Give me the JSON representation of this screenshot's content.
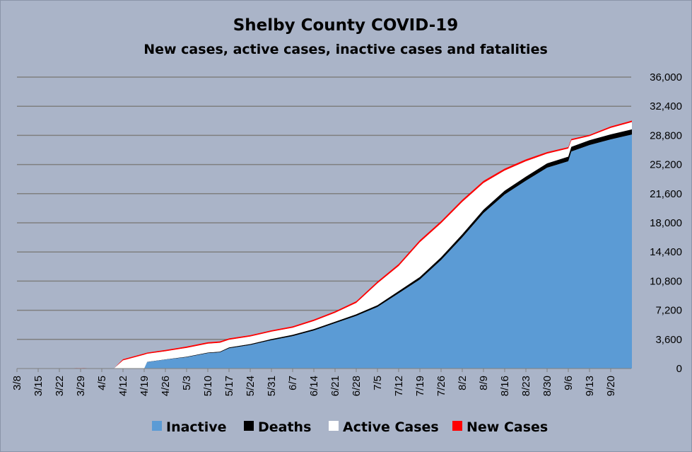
{
  "chart_data": {
    "type": "area",
    "title": "Shelby County COVID-19",
    "subtitle": "New cases, active cases, inactive cases and fatalities",
    "xlabel": "",
    "ylabel": "",
    "x_tick_labels": [
      "3/8",
      "3/15",
      "3/22",
      "3/29",
      "4/5",
      "4/12",
      "4/19",
      "4/26",
      "5/3",
      "5/10",
      "5/17",
      "5/24",
      "5/31",
      "6/7",
      "6/14",
      "6/21",
      "6/28",
      "7/5",
      "7/12",
      "7/19",
      "7/26",
      "8/2",
      "8/9",
      "8/16",
      "8/23",
      "8/30",
      "9/6",
      "9/13",
      "9/20"
    ],
    "y_tick_labels": [
      "0",
      "3,600",
      "7,200",
      "10,800",
      "14,400",
      "18,000",
      "21,600",
      "25,200",
      "28,800",
      "32,400",
      "36,000"
    ],
    "ylim": [
      0,
      36000
    ],
    "y_axis_side": "right",
    "grid": true,
    "legend_position": "bottom",
    "colors": {
      "Inactive": "#5b9bd5",
      "Deaths": "#000000",
      "Active Cases": "#ffffff",
      "New Cases": "#ff0000",
      "background": "#aab4c8",
      "gridline": "#7f7f7f"
    },
    "x": [
      "3/8",
      "3/15",
      "3/22",
      "3/29",
      "4/5",
      "4/9",
      "4/12",
      "4/19",
      "4/20",
      "4/26",
      "5/3",
      "5/10",
      "5/14",
      "5/17",
      "5/24",
      "5/31",
      "6/7",
      "6/14",
      "6/21",
      "6/28",
      "7/5",
      "7/12",
      "7/19",
      "7/26",
      "8/2",
      "8/9",
      "8/16",
      "8/23",
      "8/30",
      "9/6",
      "9/7",
      "9/13",
      "9/20",
      "9/27"
    ],
    "series": [
      {
        "name": "Inactive",
        "values": [
          0,
          0,
          0,
          0,
          0,
          0,
          0,
          0,
          800,
          1100,
          1400,
          1900,
          2000,
          2500,
          2900,
          3500,
          4000,
          4700,
          5600,
          6500,
          7600,
          9300,
          11000,
          13400,
          16200,
          19200,
          21500,
          23200,
          24800,
          25600,
          26800,
          27600,
          28300,
          28900
        ]
      },
      {
        "name": "Deaths",
        "values": [
          0,
          0,
          0,
          0,
          0,
          0,
          0,
          0,
          20,
          30,
          50,
          70,
          80,
          100,
          120,
          140,
          160,
          170,
          180,
          200,
          220,
          260,
          300,
          340,
          380,
          420,
          460,
          500,
          540,
          570,
          580,
          600,
          620,
          640
        ]
      },
      {
        "name": "Active Cases",
        "values": [
          0,
          0,
          0,
          50,
          0,
          0,
          1000,
          1700,
          1000,
          1000,
          1100,
          1100,
          1100,
          950,
          930,
          910,
          880,
          1000,
          1100,
          1400,
          2700,
          3100,
          4300,
          4200,
          4000,
          3300,
          2500,
          1900,
          1200,
          1000,
          800,
          500,
          800,
          900
        ]
      },
      {
        "name": "New Cases",
        "values": [
          0,
          0,
          0,
          20,
          0,
          0,
          150,
          160,
          150,
          160,
          170,
          170,
          170,
          170,
          170,
          170,
          170,
          180,
          190,
          210,
          230,
          250,
          260,
          270,
          270,
          260,
          240,
          230,
          200,
          180,
          170,
          170,
          180,
          190
        ]
      }
    ]
  }
}
